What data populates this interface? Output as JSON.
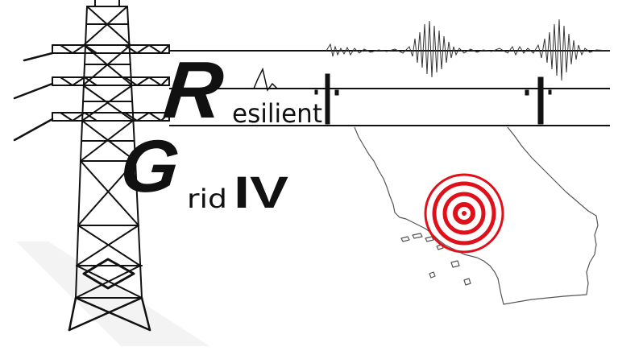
{
  "logo": {
    "line1_initial": "R",
    "line1_rest": "esilient",
    "line2_initial": "G",
    "line2_rest": "rid",
    "line2_numeral": "IV"
  },
  "colors": {
    "ink": "#111111",
    "target_red": "#e0101a",
    "map_line": "#555555",
    "seismo": "#333333"
  },
  "icons": {
    "tower": "transmission-tower-icon",
    "map": "california-map-icon",
    "target": "epicenter-target-icon",
    "seismogram": "seismogram-icon"
  }
}
